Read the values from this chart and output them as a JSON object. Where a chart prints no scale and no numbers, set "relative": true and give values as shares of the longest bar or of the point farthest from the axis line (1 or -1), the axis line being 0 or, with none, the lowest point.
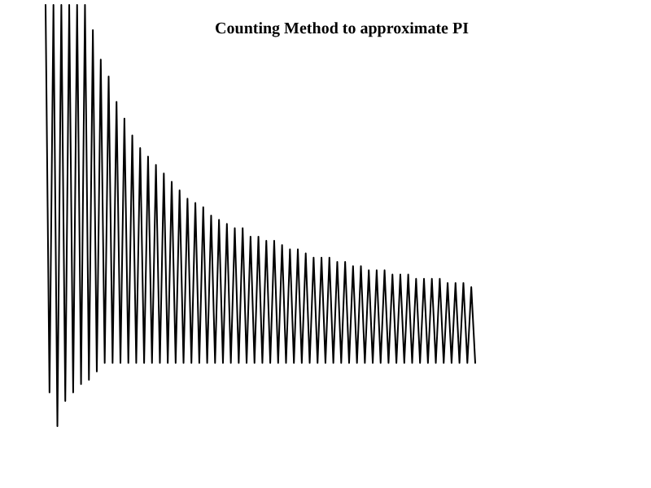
{
  "chart_data": {
    "type": "line",
    "title": "Counting Method to approximate PI",
    "relative": true,
    "line_style": "solid",
    "categories": [
      null,
      null,
      null,
      null,
      null,
      null,
      null,
      null,
      null,
      null,
      null,
      null,
      null,
      null,
      null,
      null,
      null,
      null,
      null,
      null,
      null,
      null,
      null,
      null,
      null,
      null,
      null,
      null,
      null,
      null,
      null,
      null,
      null,
      null,
      null,
      null,
      null,
      null,
      null,
      null,
      null,
      null,
      null,
      null,
      null,
      null,
      null,
      null,
      null,
      null,
      null,
      null,
      null,
      null,
      null,
      null,
      null,
      null,
      null,
      null,
      null,
      null,
      null,
      null,
      null,
      null,
      null,
      null,
      null,
      null,
      null,
      null,
      null,
      null,
      null,
      null,
      null,
      null,
      null,
      null,
      null,
      null,
      null,
      null,
      null,
      null,
      null,
      null,
      null,
      null,
      null,
      null,
      null,
      null,
      null,
      null,
      null,
      null,
      null,
      null,
      null,
      null,
      null,
      null,
      null,
      null,
      null,
      null,
      null,
      null
    ],
    "series": [
      {
        "color": "#000000",
        "values": [
          1,
          0.08,
          1,
          0,
          1,
          0.06,
          1,
          0.08,
          1,
          0.1,
          1,
          0.11,
          0.94,
          0.13,
          0.87,
          0.15,
          0.83,
          0.15,
          0.77,
          0.15,
          0.73,
          0.15,
          0.69,
          0.15,
          0.66,
          0.15,
          0.64,
          0.15,
          0.62,
          0.15,
          0.6,
          0.15,
          0.58,
          0.15,
          0.56,
          0.15,
          0.54,
          0.15,
          0.53,
          0.15,
          0.52,
          0.15,
          0.5,
          0.15,
          0.49,
          0.15,
          0.48,
          0.15,
          0.47,
          0.15,
          0.47,
          0.15,
          0.45,
          0.15,
          0.45,
          0.15,
          0.44,
          0.15,
          0.44,
          0.15,
          0.43,
          0.15,
          0.42,
          0.15,
          0.42,
          0.15,
          0.41,
          0.15,
          0.4,
          0.15,
          0.4,
          0.15,
          0.4,
          0.15,
          0.39,
          0.15,
          0.39,
          0.15,
          0.38,
          0.15,
          0.38,
          0.15,
          0.37,
          0.15,
          0.37,
          0.15,
          0.37,
          0.15,
          0.36,
          0.15,
          0.36,
          0.15,
          0.36,
          0.15,
          0.35,
          0.15,
          0.35,
          0.15,
          0.35,
          0.15,
          0.35,
          0.15,
          0.34,
          0.15,
          0.34,
          0.15,
          0.34,
          0.15,
          0.33,
          0.15
        ]
      }
    ]
  }
}
